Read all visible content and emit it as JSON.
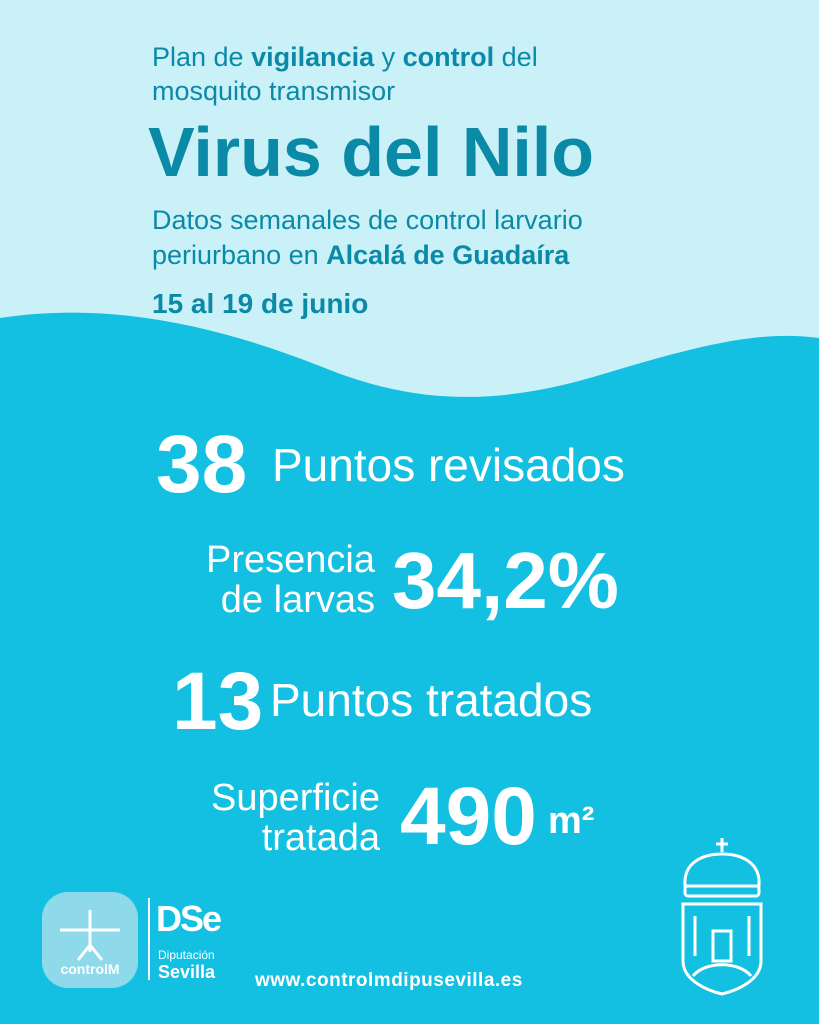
{
  "header": {
    "intro_line1": [
      "Plan de ",
      "vigilancia",
      " y ",
      "control",
      " del"
    ],
    "intro_line2": "mosquito transmisor",
    "title": "Virus del Nilo",
    "subtitle_line1": "Datos semanales de control larvario",
    "subtitle_line2": [
      "periurbano en ",
      "Alcalá de Guadaíra"
    ],
    "dates": "15 al 19 de junio"
  },
  "stats": [
    {
      "value": "38",
      "label": "Puntos revisados"
    },
    {
      "label_lines": [
        "Presencia",
        "de larvas"
      ],
      "value": "34,2%"
    },
    {
      "value": "13",
      "label": "Puntos tratados"
    },
    {
      "label_lines": [
        "Superficie",
        "tratada"
      ],
      "value": "490",
      "unit": "m²"
    }
  ],
  "footer": {
    "logo_controlm": "controlM",
    "logo_dse": "DSe",
    "diputacion": "Diputación",
    "sevilla": "Sevilla",
    "url": "www.controlmdipusevilla.es"
  }
}
